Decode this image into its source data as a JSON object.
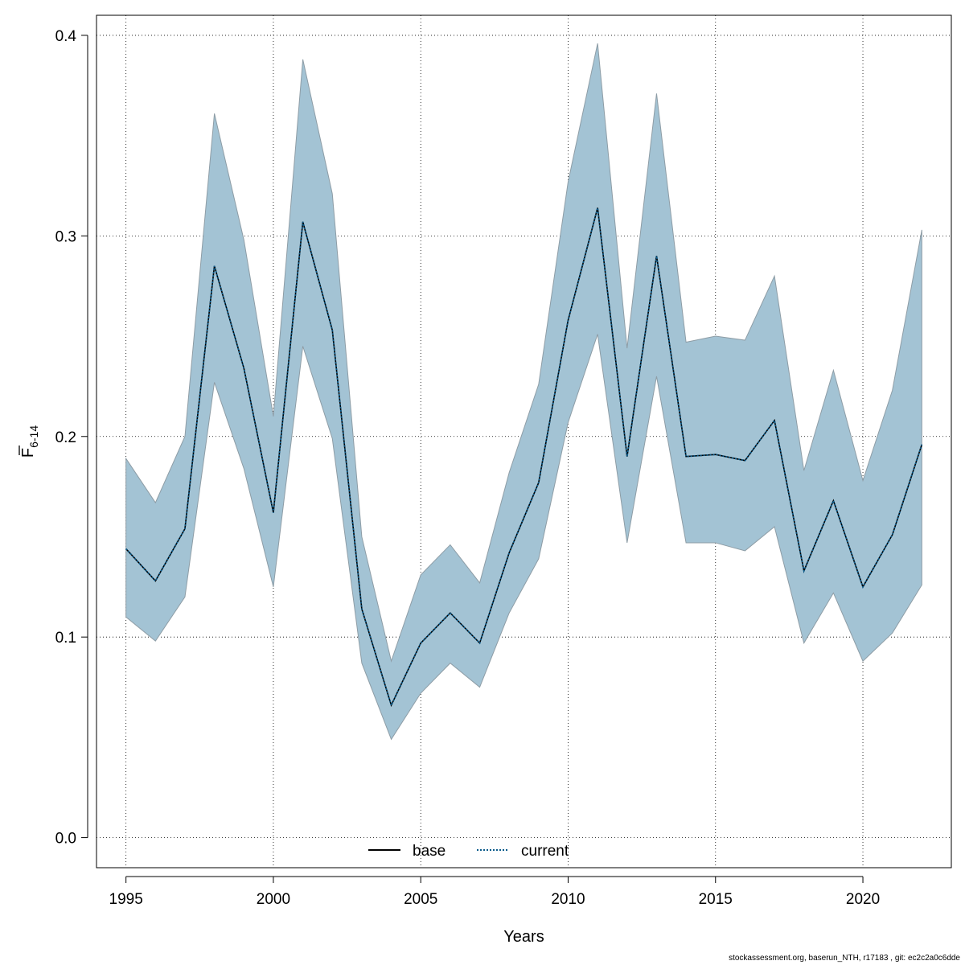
{
  "chart_data": {
    "type": "line",
    "xlabel": "Years",
    "ylabel_main": "F",
    "ylabel_sub": "6-14",
    "xlim": [
      1994,
      2023
    ],
    "ylim": [
      -0.015,
      0.41
    ],
    "x_ticks": [
      "1995",
      "2000",
      "2005",
      "2010",
      "2015",
      "2020"
    ],
    "y_ticks": [
      "0.0",
      "0.1",
      "0.2",
      "0.3",
      "0.4"
    ],
    "grid": true,
    "band_color": "#a3c3d4",
    "band_edge_color": "#8e9da6",
    "x": [
      1995,
      1996,
      1997,
      1998,
      1999,
      2000,
      2001,
      2002,
      2003,
      2004,
      2005,
      2006,
      2007,
      2008,
      2009,
      2010,
      2011,
      2012,
      2013,
      2014,
      2015,
      2016,
      2017,
      2018,
      2019,
      2020,
      2021,
      2022
    ],
    "band_upper": [
      0.189,
      0.167,
      0.2,
      0.361,
      0.298,
      0.21,
      0.388,
      0.321,
      0.15,
      0.088,
      0.131,
      0.146,
      0.127,
      0.182,
      0.226,
      0.327,
      0.396,
      0.244,
      0.371,
      0.247,
      0.25,
      0.248,
      0.28,
      0.183,
      0.233,
      0.178,
      0.223,
      0.303
    ],
    "band_lower": [
      0.11,
      0.098,
      0.12,
      0.227,
      0.184,
      0.125,
      0.245,
      0.199,
      0.087,
      0.049,
      0.072,
      0.087,
      0.075,
      0.112,
      0.139,
      0.207,
      0.251,
      0.147,
      0.23,
      0.147,
      0.147,
      0.143,
      0.155,
      0.097,
      0.122,
      0.088,
      0.102,
      0.126
    ],
    "series": [
      {
        "name": "base",
        "color": "#000000",
        "dash": "solid",
        "values": [
          0.144,
          0.128,
          0.154,
          0.285,
          0.234,
          0.162,
          0.307,
          0.253,
          0.114,
          0.066,
          0.097,
          0.112,
          0.097,
          0.142,
          0.177,
          0.258,
          0.314,
          0.19,
          0.29,
          0.19,
          0.191,
          0.188,
          0.208,
          0.133,
          0.168,
          0.125,
          0.151,
          0.196
        ]
      },
      {
        "name": "current",
        "color": "#0a5a8a",
        "dash": "dotted",
        "values": [
          0.144,
          0.128,
          0.154,
          0.285,
          0.234,
          0.162,
          0.307,
          0.253,
          0.114,
          0.066,
          0.097,
          0.112,
          0.097,
          0.142,
          0.177,
          0.258,
          0.314,
          0.19,
          0.29,
          0.19,
          0.191,
          0.188,
          0.208,
          0.133,
          0.168,
          0.125,
          0.151,
          0.196
        ]
      }
    ],
    "legend_position": "bottom-center"
  },
  "footer_text": "stockassessment.org, baserun_NTH, r17183 , git: ec2c2a0c6dde"
}
